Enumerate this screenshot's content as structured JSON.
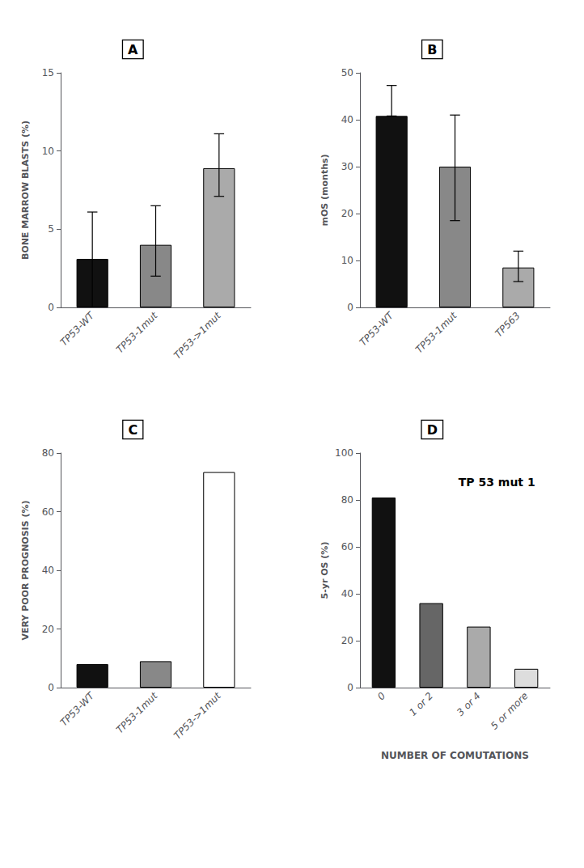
{
  "chart_data": [
    {
      "type": "bar",
      "panel_label": "A",
      "categories": [
        "TP53-WT",
        "TP53-1mut",
        "TP53->1mut"
      ],
      "values": [
        3.1,
        4.0,
        8.9
      ],
      "errors_low": [
        3.1,
        2.0,
        1.8
      ],
      "errors_high": [
        3.0,
        2.5,
        2.2
      ],
      "colors": [
        "#111111",
        "#888888",
        "#aaaaaa"
      ],
      "ylabel": "BONE MARROW BLASTS (%)",
      "ylim": [
        0,
        15
      ],
      "yticks": [
        0,
        5,
        10,
        15
      ],
      "grid": false
    },
    {
      "type": "bar",
      "panel_label": "B",
      "categories": [
        "TP53-WT",
        "TP53-1mut",
        "TP563"
      ],
      "values": [
        40.8,
        30.0,
        8.5
      ],
      "errors_low": [
        0,
        11.5,
        3.0
      ],
      "errors_high": [
        6.5,
        11.0,
        3.5
      ],
      "colors": [
        "#111111",
        "#888888",
        "#aaaaaa"
      ],
      "ylabel": "mOS (months)",
      "ylim": [
        0,
        50
      ],
      "yticks": [
        0,
        10,
        20,
        30,
        40,
        50
      ],
      "grid": false
    },
    {
      "type": "bar",
      "panel_label": "C",
      "categories": [
        "TP53-WT",
        "TP53-1mut",
        "TP53->1mut"
      ],
      "values": [
        8.0,
        9.0,
        73.5
      ],
      "colors": [
        "#111111",
        "#888888",
        "#ffffff"
      ],
      "ylabel": "VERY POOR PROGNOSIS (%)",
      "ylim": [
        0,
        80
      ],
      "yticks": [
        0,
        20,
        40,
        60,
        80
      ],
      "grid": false
    },
    {
      "type": "bar",
      "panel_label": "D",
      "title": "TP 53 mut 1",
      "categories": [
        "0",
        "1 or 2",
        "3 or 4",
        "5 or more"
      ],
      "values": [
        81,
        36,
        26,
        8
      ],
      "colors": [
        "#111111",
        "#666666",
        "#aaaaaa",
        "#dddddd"
      ],
      "ylabel": "5-yr OS (%)",
      "xlabel": "NUMBER OF COMUTATIONS",
      "ylim": [
        0,
        100
      ],
      "yticks": [
        0,
        20,
        40,
        60,
        80,
        100
      ],
      "grid": false
    }
  ]
}
